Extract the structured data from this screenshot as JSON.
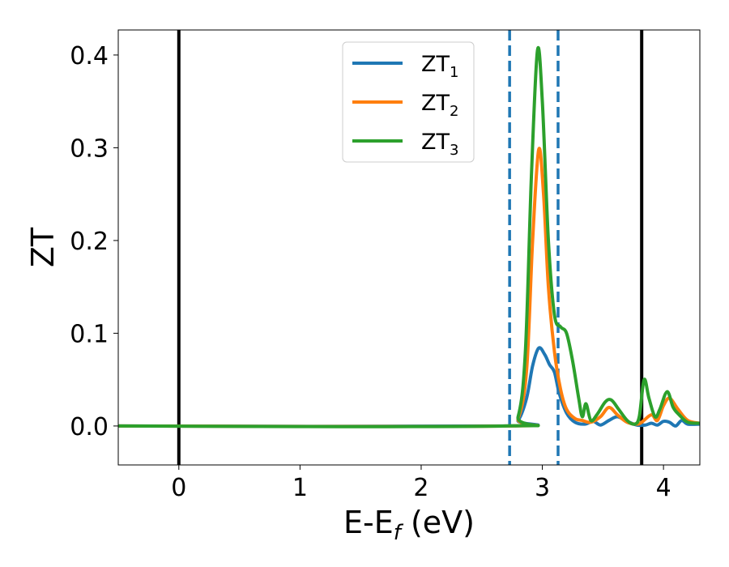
{
  "chart_data": {
    "type": "line",
    "title": "",
    "xlabel": "E-E",
    "xlabel_sub": "f",
    "xlabel_unit": " (eV)",
    "ylabel": "ZT",
    "xlim": [
      -0.5,
      4.3
    ],
    "ylim": [
      -0.042,
      0.427
    ],
    "x_ticks": [
      0,
      1,
      2,
      3,
      4
    ],
    "x_tick_labels": [
      "0",
      "1",
      "2",
      "3",
      "4"
    ],
    "y_ticks": [
      0.0,
      0.1,
      0.2,
      0.3,
      0.4
    ],
    "y_tick_labels": [
      "0.0",
      "0.1",
      "0.2",
      "0.3",
      "0.4"
    ],
    "grid": false,
    "legend_position": "top-center",
    "vertical_lines": [
      {
        "x": 0.0,
        "style": "solid",
        "color": "#000000"
      },
      {
        "x": 2.73,
        "style": "dashed",
        "color": "#1f77b4"
      },
      {
        "x": 3.13,
        "style": "dashed",
        "color": "#1f77b4"
      },
      {
        "x": 3.82,
        "style": "solid",
        "color": "#000000"
      }
    ],
    "series": [
      {
        "name": "ZT",
        "name_sub": "1",
        "color": "#1f77b4",
        "points": [
          [
            -0.5,
            0.0
          ],
          [
            2.7,
            0.0
          ],
          [
            2.8,
            0.006
          ],
          [
            2.87,
            0.03
          ],
          [
            2.92,
            0.065
          ],
          [
            2.97,
            0.084
          ],
          [
            3.02,
            0.077
          ],
          [
            3.06,
            0.066
          ],
          [
            3.1,
            0.058
          ],
          [
            3.14,
            0.035
          ],
          [
            3.2,
            0.014
          ],
          [
            3.27,
            0.004
          ],
          [
            3.35,
            0.002
          ],
          [
            3.42,
            0.005
          ],
          [
            3.48,
            0.001
          ],
          [
            3.55,
            0.006
          ],
          [
            3.62,
            0.01
          ],
          [
            3.7,
            0.005
          ],
          [
            3.78,
            0.001
          ],
          [
            3.85,
            0.001
          ],
          [
            3.9,
            0.003
          ],
          [
            3.95,
            0.001
          ],
          [
            4.0,
            0.005
          ],
          [
            4.05,
            0.004
          ],
          [
            4.1,
            0.0
          ],
          [
            4.15,
            0.006
          ],
          [
            4.2,
            0.002
          ],
          [
            4.3,
            0.002
          ]
        ]
      },
      {
        "name": "ZT",
        "name_sub": "2",
        "color": "#ff7f0e",
        "points": [
          [
            -0.5,
            0.0
          ],
          [
            2.7,
            0.0
          ],
          [
            2.8,
            0.008
          ],
          [
            2.87,
            0.06
          ],
          [
            2.92,
            0.2
          ],
          [
            2.97,
            0.298
          ],
          [
            3.01,
            0.25
          ],
          [
            3.05,
            0.15
          ],
          [
            3.1,
            0.08
          ],
          [
            3.15,
            0.04
          ],
          [
            3.2,
            0.018
          ],
          [
            3.27,
            0.008
          ],
          [
            3.33,
            0.006
          ],
          [
            3.4,
            0.004
          ],
          [
            3.48,
            0.01
          ],
          [
            3.55,
            0.02
          ],
          [
            3.62,
            0.012
          ],
          [
            3.7,
            0.004
          ],
          [
            3.78,
            0.002
          ],
          [
            3.82,
            0.004
          ],
          [
            3.9,
            0.012
          ],
          [
            3.95,
            0.006
          ],
          [
            4.0,
            0.022
          ],
          [
            4.05,
            0.03
          ],
          [
            4.12,
            0.018
          ],
          [
            4.2,
            0.006
          ],
          [
            4.3,
            0.003
          ]
        ]
      },
      {
        "name": "ZT",
        "name_sub": "3",
        "color": "#2ca02c",
        "points": [
          [
            -0.5,
            0.0
          ],
          [
            2.7,
            0.0
          ],
          [
            2.8,
            0.01
          ],
          [
            2.86,
            0.08
          ],
          [
            2.91,
            0.27
          ],
          [
            2.96,
            0.405
          ],
          [
            3.0,
            0.35
          ],
          [
            3.05,
            0.2
          ],
          [
            3.1,
            0.12
          ],
          [
            3.15,
            0.107
          ],
          [
            3.2,
            0.1
          ],
          [
            3.25,
            0.07
          ],
          [
            3.3,
            0.03
          ],
          [
            3.33,
            0.01
          ],
          [
            3.36,
            0.024
          ],
          [
            3.4,
            0.006
          ],
          [
            3.45,
            0.012
          ],
          [
            3.52,
            0.026
          ],
          [
            3.57,
            0.028
          ],
          [
            3.63,
            0.018
          ],
          [
            3.7,
            0.006
          ],
          [
            3.76,
            0.002
          ],
          [
            3.8,
            0.01
          ],
          [
            3.84,
            0.05
          ],
          [
            3.88,
            0.03
          ],
          [
            3.93,
            0.01
          ],
          [
            3.97,
            0.018
          ],
          [
            4.03,
            0.037
          ],
          [
            4.08,
            0.02
          ],
          [
            4.13,
            0.012
          ],
          [
            4.2,
            0.004
          ],
          [
            4.3,
            0.003
          ]
        ]
      }
    ]
  }
}
